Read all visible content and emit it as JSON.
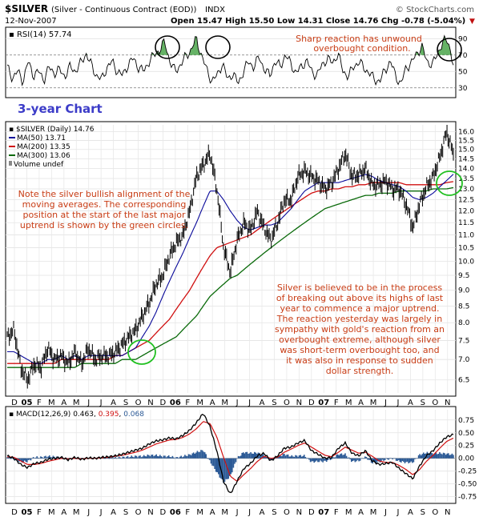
{
  "header": {
    "symbol": "$SILVER",
    "name": "(Silver - Continuous Contract (EOD))",
    "exchange": "INDX",
    "site": "© StockCharts.com",
    "date": "12-Nov-2007",
    "quote": "Open 15.47  High 15.50  Low 14.31  Close 14.76  Chg -0.78 (-5.04%)",
    "down_marker": "▼"
  },
  "colors": {
    "price": "#000000",
    "ma50": "#0a0a9a",
    "ma200": "#d01010",
    "ma300": "#0a6a0a",
    "annotation": "#c83c14",
    "title": "#3c3cc8",
    "circle_green": "#20c020",
    "rsi_fill": "#40a040",
    "macd_hist": "#2c5a96"
  },
  "annotations": {
    "chart_title": "3-year Chart",
    "rsi_note": [
      "Sharp reaction has unwound",
      "overbought condition."
    ],
    "left_note": [
      "Note the silver bullish alignment of the",
      "moving averages. The corresponding",
      "position at the start of the last major",
      "uptrend is shown by the green circles."
    ],
    "right_note": [
      "Silver is believed to be in the process",
      "of breaking out above its highs of last",
      "year to commence a major uptrend.",
      "The reaction yesterday was largely in",
      "sympathy with gold's reaction from an",
      "overbought extreme, although silver",
      "was short-term overbought too, and",
      "it was also in response to sudden",
      "dollar strength."
    ]
  },
  "chart_data": [
    {
      "type": "line",
      "panel": "rsi",
      "legend": "RSI(14) 57.74",
      "ylim": [
        20,
        100
      ],
      "yticks": [
        30,
        50,
        70,
        90
      ],
      "levels": [
        30,
        70
      ],
      "series": [
        {
          "name": "RSI(14)",
          "last": 57.74,
          "values": [
            55,
            42,
            50,
            38,
            62,
            45,
            50,
            40,
            55,
            48,
            52,
            44,
            56,
            50,
            60,
            72,
            58,
            45,
            40,
            55,
            62,
            50,
            45,
            58,
            66,
            55,
            50,
            62,
            70,
            76,
            86,
            62,
            50,
            58,
            68,
            76,
            90,
            70,
            52,
            38,
            45,
            60,
            40,
            48,
            35,
            50,
            62,
            55,
            68,
            52,
            45,
            62,
            56,
            70,
            60,
            48,
            55,
            64,
            50,
            45,
            58,
            66,
            60,
            72,
            50,
            44,
            56,
            62,
            54,
            48,
            40,
            38,
            52,
            62,
            45,
            34,
            55,
            60,
            72,
            80,
            62,
            58,
            72,
            86,
            88,
            57.74
          ]
        }
      ]
    },
    {
      "type": "line",
      "panel": "price",
      "legend": [
        "$SILVER (Daily) 14.76",
        "MA(50) 13.71",
        "MA(200) 13.35",
        "MA(300) 13.06",
        "Volume undef"
      ],
      "ylim": [
        6.2,
        16.4
      ],
      "log_scale": true,
      "yticks": [
        "6.5",
        "7.0",
        "7.5",
        "8.0",
        "8.5",
        "9.0",
        "9.5",
        "10.0",
        "10.5",
        "11.0",
        "11.5",
        "12.0",
        "12.5",
        "13.0",
        "13.5",
        "14.0",
        "14.5",
        "15.0",
        "15.5",
        "16.0"
      ],
      "x_labels": [
        "D",
        "05",
        "F",
        "M",
        "A",
        "M",
        "J",
        "J",
        "A",
        "S",
        "O",
        "N",
        "D",
        "06",
        "F",
        "M",
        "A",
        "M",
        "J",
        "J",
        "A",
        "S",
        "O",
        "N",
        "D",
        "07",
        "F",
        "M",
        "A",
        "M",
        "J",
        "J",
        "A",
        "S",
        "O",
        "N"
      ],
      "series": [
        {
          "name": "$SILVER (Daily)",
          "last": 14.76,
          "values": [
            7.6,
            7.8,
            6.8,
            6.5,
            6.9,
            6.8,
            7.3,
            7.0,
            7.1,
            6.9,
            7.2,
            6.9,
            7.3,
            7.0,
            7.1,
            7.1,
            7.2,
            7.4,
            7.6,
            7.8,
            8.2,
            8.6,
            9.2,
            9.5,
            10.2,
            10.7,
            11.0,
            12.0,
            13.6,
            14.2,
            14.8,
            13.0,
            10.5,
            9.6,
            10.8,
            11.5,
            11.2,
            12.0,
            11.3,
            10.8,
            11.5,
            12.5,
            12.5,
            13.6,
            13.9,
            13.6,
            13.4,
            13.0,
            13.3,
            14.0,
            14.8,
            13.6,
            13.7,
            14.0,
            13.2,
            13.2,
            13.4,
            13.0,
            13.0,
            12.3,
            11.3,
            12.3,
            13.1,
            13.6,
            14.6,
            16.0,
            14.76
          ]
        },
        {
          "name": "MA(50)",
          "last": 13.71,
          "values": [
            7.2,
            7.2,
            7.1,
            7.0,
            6.9,
            6.9,
            7.0,
            7.0,
            7.1,
            7.0,
            7.1,
            7.0,
            7.1,
            7.1,
            7.1,
            7.1,
            7.1,
            7.1,
            7.2,
            7.3,
            7.6,
            7.9,
            8.3,
            8.8,
            9.3,
            9.8,
            10.3,
            10.9,
            11.5,
            12.2,
            12.9,
            12.9,
            12.5,
            12.0,
            11.6,
            11.3,
            11.2,
            11.3,
            11.4,
            11.4,
            11.5,
            11.8,
            12.1,
            12.5,
            12.9,
            13.1,
            13.3,
            13.3,
            13.3,
            13.3,
            13.4,
            13.5,
            13.6,
            13.7,
            13.6,
            13.4,
            13.3,
            13.2,
            13.1,
            12.9,
            12.6,
            12.5,
            12.6,
            12.8,
            13.1,
            13.4,
            13.71
          ]
        },
        {
          "name": "MA(200)",
          "last": 13.35,
          "values": [
            6.9,
            6.9,
            6.9,
            6.9,
            6.9,
            6.9,
            6.9,
            6.9,
            7.0,
            7.0,
            7.0,
            7.0,
            7.0,
            7.0,
            7.0,
            7.0,
            7.1,
            7.1,
            7.2,
            7.3,
            7.4,
            7.5,
            7.7,
            7.9,
            8.1,
            8.4,
            8.7,
            9.0,
            9.4,
            9.8,
            10.2,
            10.5,
            10.6,
            10.7,
            10.8,
            10.9,
            11.0,
            11.2,
            11.4,
            11.6,
            11.8,
            12.0,
            12.2,
            12.4,
            12.6,
            12.8,
            12.9,
            12.9,
            13.0,
            13.0,
            13.1,
            13.1,
            13.2,
            13.2,
            13.3,
            13.3,
            13.3,
            13.3,
            13.3,
            13.2,
            13.2,
            13.2,
            13.2,
            13.2,
            13.2,
            13.3,
            13.35
          ]
        },
        {
          "name": "MA(300)",
          "last": 13.06,
          "values": [
            6.8,
            6.8,
            6.8,
            6.8,
            6.8,
            6.8,
            6.8,
            6.8,
            6.8,
            6.8,
            6.8,
            6.9,
            6.9,
            6.9,
            6.9,
            6.9,
            6.9,
            7.0,
            7.0,
            7.0,
            7.1,
            7.2,
            7.3,
            7.4,
            7.5,
            7.6,
            7.8,
            8.0,
            8.2,
            8.5,
            8.8,
            9.0,
            9.2,
            9.4,
            9.5,
            9.7,
            9.9,
            10.1,
            10.3,
            10.5,
            10.7,
            10.9,
            11.1,
            11.3,
            11.5,
            11.7,
            11.9,
            12.1,
            12.2,
            12.3,
            12.4,
            12.5,
            12.6,
            12.7,
            12.7,
            12.8,
            12.8,
            12.8,
            12.9,
            12.9,
            12.9,
            12.9,
            12.9,
            13.0,
            13.0,
            13.0,
            13.06
          ]
        }
      ]
    },
    {
      "type": "line",
      "panel": "macd",
      "legend": "MACD(12,26,9)",
      "legend_values": [
        "0.463",
        "0.395",
        "0.068"
      ],
      "ylim": [
        -0.85,
        0.95
      ],
      "yticks": [
        "0.75",
        "0.50",
        "0.25",
        "0.00",
        "-0.25",
        "-0.50",
        "-0.75"
      ],
      "x_labels": [
        "D",
        "05",
        "F",
        "M",
        "A",
        "M",
        "J",
        "J",
        "A",
        "S",
        "O",
        "N",
        "D",
        "06",
        "F",
        "M",
        "A",
        "M",
        "J",
        "J",
        "A",
        "S",
        "O",
        "N",
        "D",
        "07",
        "F",
        "M",
        "A",
        "M",
        "J",
        "J",
        "A",
        "S",
        "O",
        "N"
      ],
      "series": [
        {
          "name": "MACD",
          "last": 0.463,
          "values": [
            0.05,
            0.0,
            -0.12,
            -0.18,
            -0.1,
            -0.08,
            -0.02,
            0.0,
            0.02,
            -0.03,
            0.02,
            -0.02,
            0.01,
            0.0,
            0.02,
            0.03,
            0.05,
            0.08,
            0.12,
            0.16,
            0.2,
            0.28,
            0.34,
            0.36,
            0.4,
            0.38,
            0.45,
            0.55,
            0.7,
            0.88,
            0.62,
            0.15,
            -0.45,
            -0.7,
            -0.45,
            -0.2,
            -0.1,
            0.05,
            0.1,
            -0.05,
            0.05,
            0.2,
            0.22,
            0.3,
            0.35,
            0.15,
            0.08,
            0.0,
            0.02,
            0.2,
            0.3,
            0.1,
            0.05,
            0.15,
            -0.05,
            -0.12,
            -0.1,
            -0.08,
            -0.2,
            -0.3,
            -0.4,
            -0.15,
            0.05,
            0.15,
            0.3,
            0.42,
            0.463
          ]
        },
        {
          "name": "Signal",
          "last": 0.395,
          "values": [
            0.03,
            0.02,
            -0.05,
            -0.12,
            -0.12,
            -0.1,
            -0.06,
            -0.03,
            0.0,
            -0.01,
            0.0,
            -0.01,
            0.0,
            0.0,
            0.01,
            0.02,
            0.04,
            0.06,
            0.09,
            0.12,
            0.16,
            0.22,
            0.28,
            0.32,
            0.36,
            0.37,
            0.41,
            0.48,
            0.58,
            0.72,
            0.68,
            0.42,
            0.02,
            -0.35,
            -0.45,
            -0.32,
            -0.2,
            -0.06,
            0.04,
            0.0,
            0.02,
            0.12,
            0.18,
            0.25,
            0.3,
            0.22,
            0.14,
            0.06,
            0.03,
            0.12,
            0.22,
            0.16,
            0.1,
            0.12,
            0.04,
            -0.05,
            -0.08,
            -0.08,
            -0.14,
            -0.22,
            -0.32,
            -0.22,
            -0.06,
            0.06,
            0.2,
            0.33,
            0.395
          ]
        },
        {
          "name": "Histogram",
          "last": 0.068
        }
      ]
    }
  ]
}
